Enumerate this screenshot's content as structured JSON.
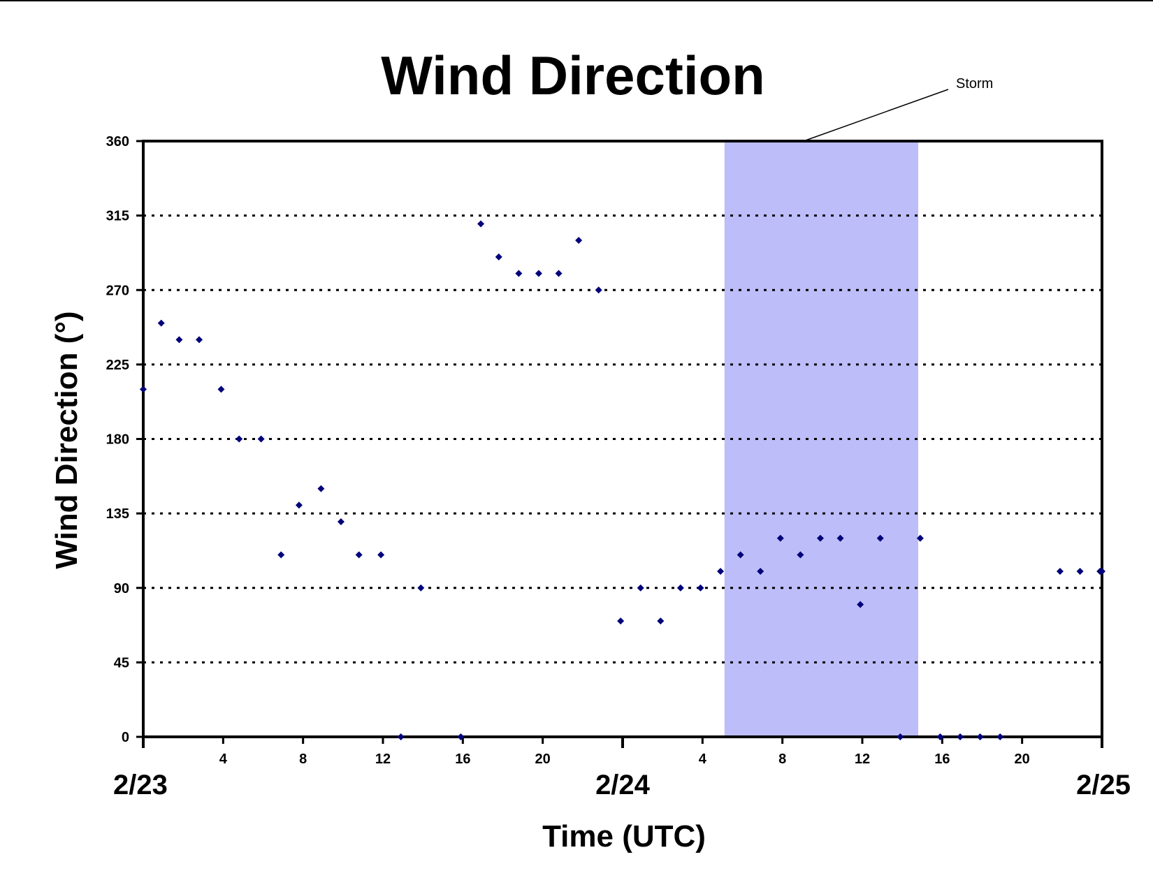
{
  "chart_data": {
    "type": "scatter",
    "title": "Wind Direction",
    "xlabel": "Time (UTC)",
    "ylabel": "Wind Direction (°)",
    "ylim": [
      0,
      360
    ],
    "yticks": [
      0,
      45,
      90,
      135,
      180,
      225,
      270,
      315,
      360
    ],
    "xlim_hours": [
      0,
      48
    ],
    "xticks": [
      {
        "hour": 4,
        "label": "4"
      },
      {
        "hour": 8,
        "label": "8"
      },
      {
        "hour": 12,
        "label": "12"
      },
      {
        "hour": 16,
        "label": "16"
      },
      {
        "hour": 20,
        "label": "20"
      },
      {
        "hour": 28,
        "label": "4"
      },
      {
        "hour": 32,
        "label": "8"
      },
      {
        "hour": 36,
        "label": "12"
      },
      {
        "hour": 40,
        "label": "16"
      },
      {
        "hour": 44,
        "label": "20"
      }
    ],
    "date_labels": [
      {
        "hour": 0,
        "label": "2/23"
      },
      {
        "hour": 24,
        "label": "2/24"
      },
      {
        "hour": 48,
        "label": "2/25"
      }
    ],
    "grid": {
      "horizontal": "dotted",
      "vertical": false
    },
    "shaded_region": {
      "label": "Storm",
      "x_start_hour": 29.1,
      "x_end_hour": 38.8,
      "color": "#bdbdf9"
    },
    "series": [
      {
        "color": "#00007a",
        "points": [
          [
            0.0,
            210
          ],
          [
            0.9,
            250
          ],
          [
            1.8,
            240
          ],
          [
            2.8,
            240
          ],
          [
            3.9,
            210
          ],
          [
            4.8,
            180
          ],
          [
            5.9,
            180
          ],
          [
            6.9,
            110
          ],
          [
            7.8,
            140
          ],
          [
            8.9,
            150
          ],
          [
            9.9,
            130
          ],
          [
            10.8,
            110
          ],
          [
            11.9,
            110
          ],
          [
            12.9,
            0
          ],
          [
            13.9,
            90
          ],
          [
            15.9,
            0
          ],
          [
            16.9,
            310
          ],
          [
            17.8,
            290
          ],
          [
            18.8,
            280
          ],
          [
            19.8,
            280
          ],
          [
            20.8,
            280
          ],
          [
            21.8,
            300
          ],
          [
            22.8,
            270
          ],
          [
            23.9,
            70
          ],
          [
            24.9,
            90
          ],
          [
            25.9,
            70
          ],
          [
            26.9,
            90
          ],
          [
            27.9,
            90
          ],
          [
            28.9,
            100
          ],
          [
            29.9,
            110
          ],
          [
            30.9,
            100
          ],
          [
            31.9,
            120
          ],
          [
            32.9,
            110
          ],
          [
            33.9,
            120
          ],
          [
            34.9,
            120
          ],
          [
            35.9,
            80
          ],
          [
            36.9,
            120
          ],
          [
            37.9,
            0
          ],
          [
            38.9,
            120
          ],
          [
            39.9,
            0
          ],
          [
            40.9,
            0
          ],
          [
            41.9,
            0
          ],
          [
            42.9,
            0
          ],
          [
            45.9,
            100
          ],
          [
            46.9,
            100
          ],
          [
            47.9,
            100
          ],
          [
            48.0,
            100
          ]
        ]
      }
    ]
  }
}
